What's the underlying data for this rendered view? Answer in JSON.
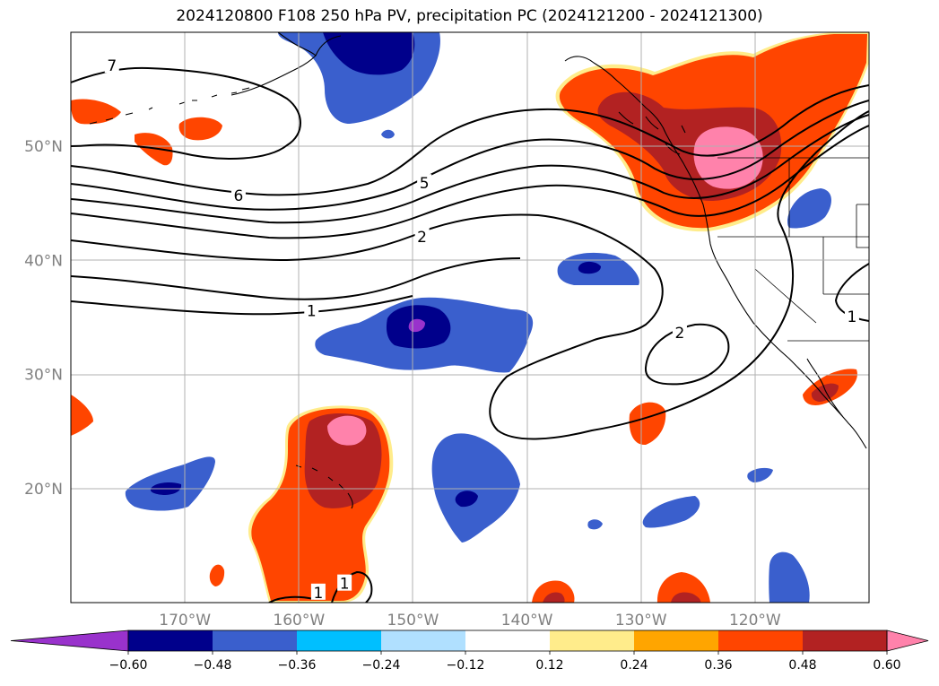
{
  "title": "2024120800 F108 250 hPa PV, precipitation PC (2024121200 - 2024121300)",
  "map": {
    "lon_range": [
      -180,
      -110
    ],
    "lat_range": [
      10,
      60
    ],
    "lat_ticks": [
      {
        "lat": 50,
        "label": "50°N"
      },
      {
        "lat": 40,
        "label": "40°N"
      },
      {
        "lat": 30,
        "label": "30°N"
      },
      {
        "lat": 20,
        "label": "20°N"
      }
    ],
    "lon_ticks": [
      {
        "lon": -170,
        "label": "170°W"
      },
      {
        "lon": -160,
        "label": "160°W"
      },
      {
        "lon": -150,
        "label": "150°W"
      },
      {
        "lon": -140,
        "label": "140°W"
      },
      {
        "lon": -130,
        "label": "130°W"
      },
      {
        "lon": -120,
        "label": "120°W"
      }
    ],
    "contour_labels": [
      {
        "text": "7",
        "lon": -176.4,
        "lat": 57.0
      },
      {
        "text": "6",
        "lon": -165.3,
        "lat": 45.6
      },
      {
        "text": "5",
        "lon": -149.0,
        "lat": 46.7
      },
      {
        "text": "2",
        "lon": -149.2,
        "lat": 42.0
      },
      {
        "text": "1",
        "lon": -158.9,
        "lat": 35.5
      },
      {
        "text": "2",
        "lon": -126.6,
        "lat": 33.6
      },
      {
        "text": "1",
        "lon": -111.5,
        "lat": 35.0
      },
      {
        "text": "1",
        "lon": -158.3,
        "lat": 10.8
      },
      {
        "text": "1",
        "lon": -156.0,
        "lat": 11.6
      }
    ]
  },
  "colorbar": {
    "colors": [
      "#9932cc",
      "#00008b",
      "#3a5fcd",
      "#00bfff",
      "#b0e0ff",
      "#ffffff",
      "#ffec8b",
      "#ffa500",
      "#ff4500",
      "#b22222",
      "#ff82ab"
    ],
    "tick_labels": [
      "−0.60",
      "−0.48",
      "−0.36",
      "−0.24",
      "−0.12",
      "0.12",
      "0.24",
      "0.36",
      "0.48",
      "0.60"
    ]
  }
}
